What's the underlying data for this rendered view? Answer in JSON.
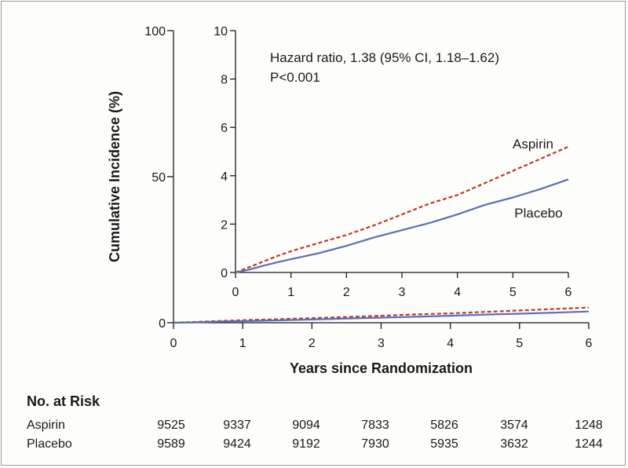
{
  "chart_data": {
    "type": "line",
    "xlabel": "Years since Randomization",
    "ylabel": "Cumulative Incidence (%)",
    "xlim": [
      0,
      6
    ],
    "ylim": [
      0,
      100
    ],
    "x_ticks": [
      "0",
      "1",
      "2",
      "3",
      "4",
      "5",
      "6"
    ],
    "y_ticks": [
      "0",
      "50",
      "100"
    ],
    "colors": {
      "aspirin": "#c0392b",
      "placebo": "#5b6fb5",
      "axis": "#1a1a1a"
    },
    "series": [
      {
        "name": "Aspirin",
        "style": "dashed",
        "color": "#c0392b",
        "x": [
          0,
          0.25,
          0.5,
          0.75,
          1,
          1.5,
          2,
          2.5,
          3,
          3.5,
          4,
          4.5,
          5,
          5.5,
          6
        ],
        "y": [
          0,
          0.22,
          0.45,
          0.68,
          0.88,
          1.22,
          1.55,
          1.95,
          2.4,
          2.85,
          3.2,
          3.7,
          4.2,
          4.7,
          5.2
        ]
      },
      {
        "name": "Placebo",
        "style": "solid",
        "color": "#5b6fb5",
        "x": [
          0,
          0.25,
          0.5,
          0.75,
          1,
          1.5,
          2,
          2.5,
          3,
          3.5,
          4,
          4.5,
          5,
          5.5,
          6
        ],
        "y": [
          0,
          0.12,
          0.28,
          0.42,
          0.55,
          0.8,
          1.1,
          1.45,
          1.75,
          2.05,
          2.4,
          2.8,
          3.1,
          3.45,
          3.85
        ]
      }
    ],
    "inset": {
      "xlim": [
        0,
        6
      ],
      "ylim": [
        0,
        10
      ],
      "x_ticks": [
        "0",
        "1",
        "2",
        "3",
        "4",
        "5",
        "6"
      ],
      "y_ticks": [
        "0",
        "2",
        "4",
        "6",
        "8",
        "10"
      ],
      "annotation": [
        "Hazard ratio, 1.38 (95% CI, 1.18–1.62)",
        "P<0.001"
      ],
      "series_labels": {
        "aspirin": "Aspirin",
        "placebo": "Placebo"
      }
    }
  },
  "risk_table": {
    "title": "No. at Risk",
    "rows": [
      {
        "label": "Aspirin",
        "values": [
          "9525",
          "9337",
          "9094",
          "7833",
          "5826",
          "3574",
          "1248"
        ]
      },
      {
        "label": "Placebo",
        "values": [
          "9589",
          "9424",
          "9192",
          "7930",
          "5935",
          "3632",
          "1244"
        ]
      }
    ]
  }
}
